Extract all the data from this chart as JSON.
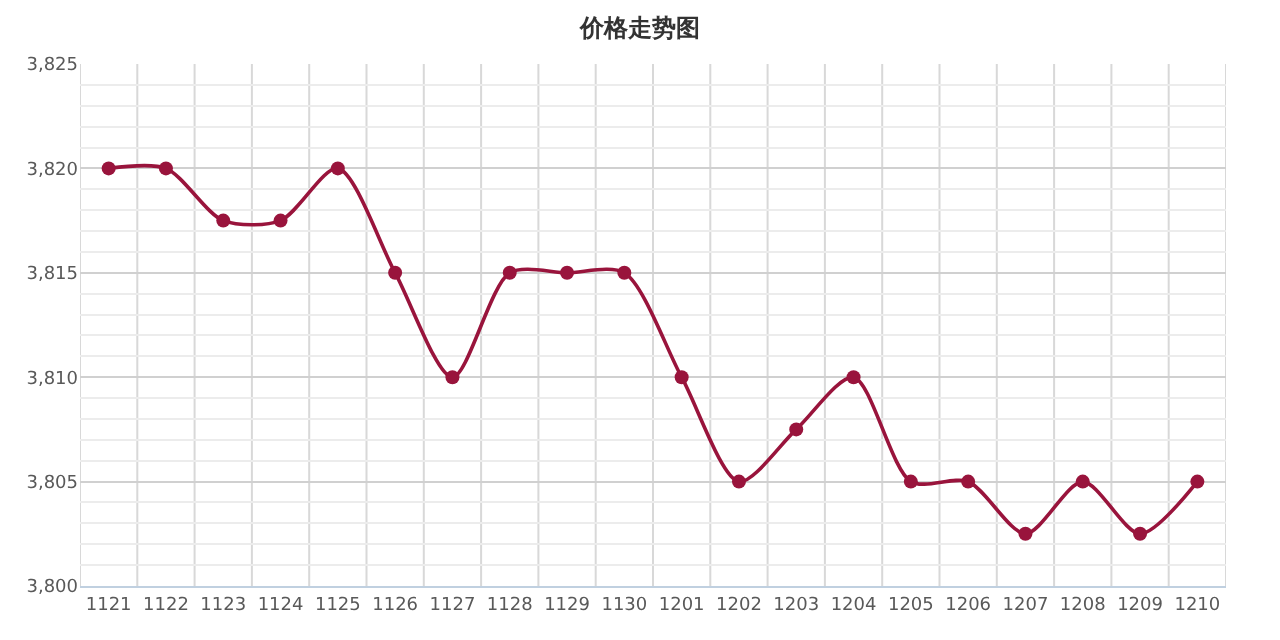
{
  "chart_data": {
    "type": "line",
    "title": "价格走势图",
    "categories": [
      "1121",
      "1122",
      "1123",
      "1124",
      "1125",
      "1126",
      "1127",
      "1128",
      "1129",
      "1130",
      "1201",
      "1202",
      "1203",
      "1204",
      "1205",
      "1206",
      "1207",
      "1208",
      "1209",
      "1210"
    ],
    "series": [
      {
        "color": "#99143c",
        "values": [
          3820,
          3820,
          3817.5,
          3817.5,
          3820,
          3815,
          3810,
          3815,
          3815,
          3815,
          3810,
          3805,
          3807.5,
          3810,
          3805,
          3805,
          3802.5,
          3805,
          3802.5,
          3805
        ]
      }
    ],
    "ylim": [
      3800,
      3825
    ],
    "yticks": [
      {
        "value": 3800,
        "label": "3,800"
      },
      {
        "value": 3805,
        "label": "3,805"
      },
      {
        "value": 3810,
        "label": "3,810"
      },
      {
        "value": 3815,
        "label": "3,815"
      },
      {
        "value": 3820,
        "label": "3,820"
      },
      {
        "value": 3825,
        "label": "3,825"
      }
    ],
    "grid": true,
    "marker": "circle",
    "line_style": "solid"
  }
}
